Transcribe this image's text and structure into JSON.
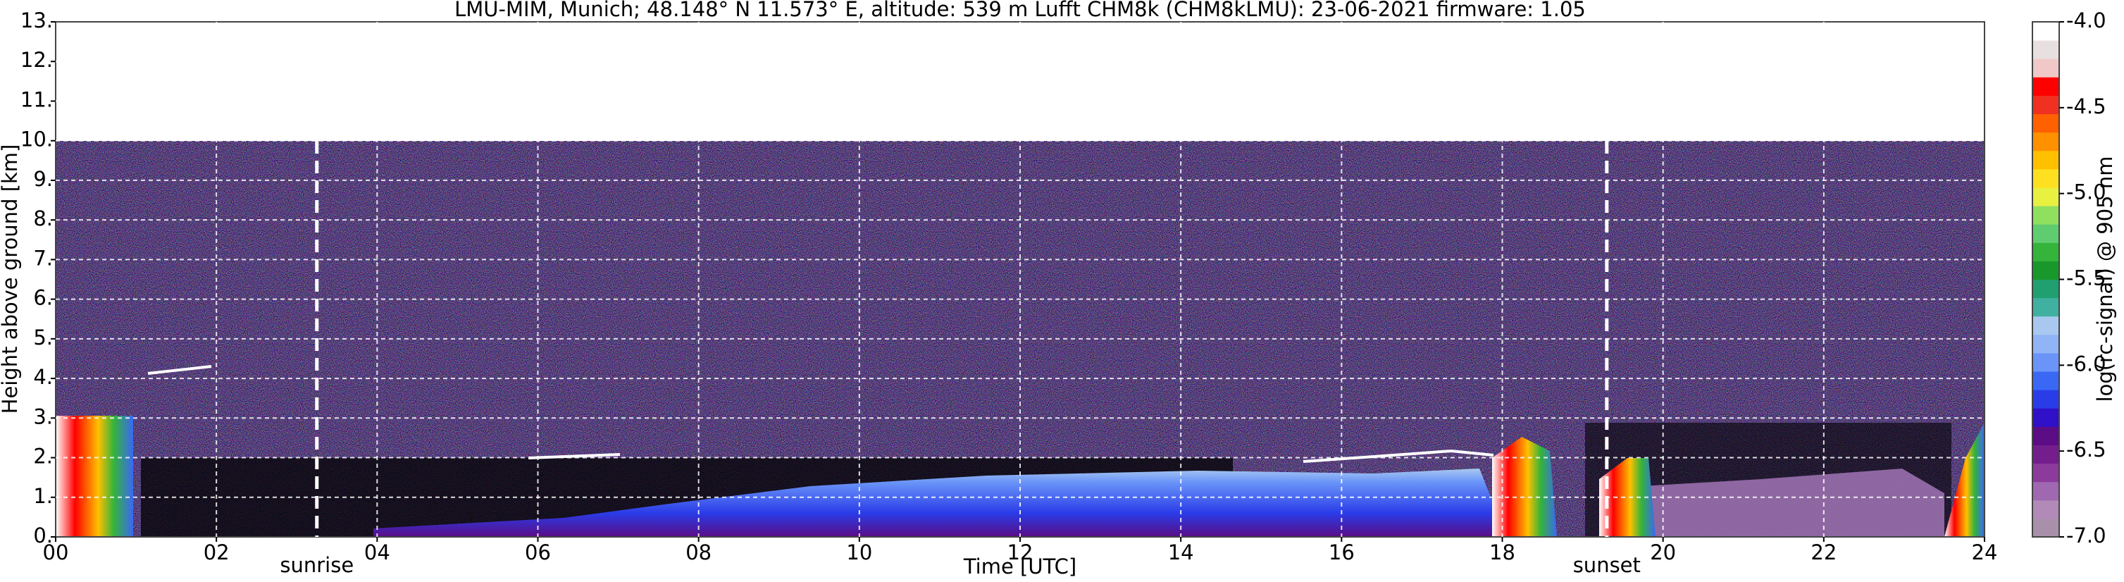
{
  "chart_data": {
    "type": "heatmap",
    "title": "LMU-MIM, Munich; 48.148° N 11.573° E, altitude: 539 m    Lufft CHM8k (CHM8kLMU): 23-06-2021    firmware: 1.05",
    "x_label": "Time [UTC]",
    "y_label": "Height above ground [km]",
    "xlim": [
      0,
      24
    ],
    "xticks": [
      {
        "value": 0,
        "label": "00"
      },
      {
        "value": 2,
        "label": "02"
      },
      {
        "value": 4,
        "label": "04"
      },
      {
        "value": 6,
        "label": "06"
      },
      {
        "value": 8,
        "label": "08"
      },
      {
        "value": 10,
        "label": "10"
      },
      {
        "value": 12,
        "label": "12"
      },
      {
        "value": 14,
        "label": "14"
      },
      {
        "value": 16,
        "label": "16"
      },
      {
        "value": 18,
        "label": "18"
      },
      {
        "value": 20,
        "label": "20"
      },
      {
        "value": 22,
        "label": "22"
      },
      {
        "value": 24,
        "label": "24"
      }
    ],
    "ylim": [
      0,
      13
    ],
    "yticks": [
      {
        "value": 0,
        "label": "0."
      },
      {
        "value": 1,
        "label": "1."
      },
      {
        "value": 2,
        "label": "2."
      },
      {
        "value": 3,
        "label": "3."
      },
      {
        "value": 4,
        "label": "4."
      },
      {
        "value": 5,
        "label": "5."
      },
      {
        "value": 6,
        "label": "6."
      },
      {
        "value": 7,
        "label": "7."
      },
      {
        "value": 8,
        "label": "8."
      },
      {
        "value": 9,
        "label": "9."
      },
      {
        "value": 10,
        "label": "10."
      },
      {
        "value": 11,
        "label": "11."
      },
      {
        "value": 12,
        "label": "12."
      },
      {
        "value": 13,
        "label": "13."
      }
    ],
    "grid": true,
    "annotations": [
      {
        "text": "sunrise",
        "x": 3.25
      },
      {
        "text": "sunset",
        "x": 19.3
      }
    ],
    "colorbar": {
      "label": "log(rc-signal) @ 905 nm",
      "lim": [
        -7,
        -4
      ],
      "ticks": [
        {
          "value": -7,
          "label": "-7.0"
        },
        {
          "value": -6.5,
          "label": "-6.5"
        },
        {
          "value": -6,
          "label": "-6.0"
        },
        {
          "value": -5.5,
          "label": "-5.5"
        },
        {
          "value": -5,
          "label": "-5.0"
        },
        {
          "value": -4.5,
          "label": "-4.5"
        },
        {
          "value": -4,
          "label": "-4.0"
        }
      ],
      "colors": [
        "#a890aa",
        "#b28ab8",
        "#a068b0",
        "#8c3a9c",
        "#741e8e",
        "#5c0c84",
        "#3010c8",
        "#2a3ce8",
        "#3a68f5",
        "#6a94f8",
        "#90b4f5",
        "#a8c8f0",
        "#40b0a0",
        "#20a070",
        "#18982a",
        "#34b43a",
        "#60cc70",
        "#90e060",
        "#e8f040",
        "#ffe020",
        "#ffc000",
        "#ff9000",
        "#ff6000",
        "#f03020",
        "#ff0000",
        "#f0c8c8",
        "#e8e0e0",
        "#ffffff"
      ]
    }
  }
}
